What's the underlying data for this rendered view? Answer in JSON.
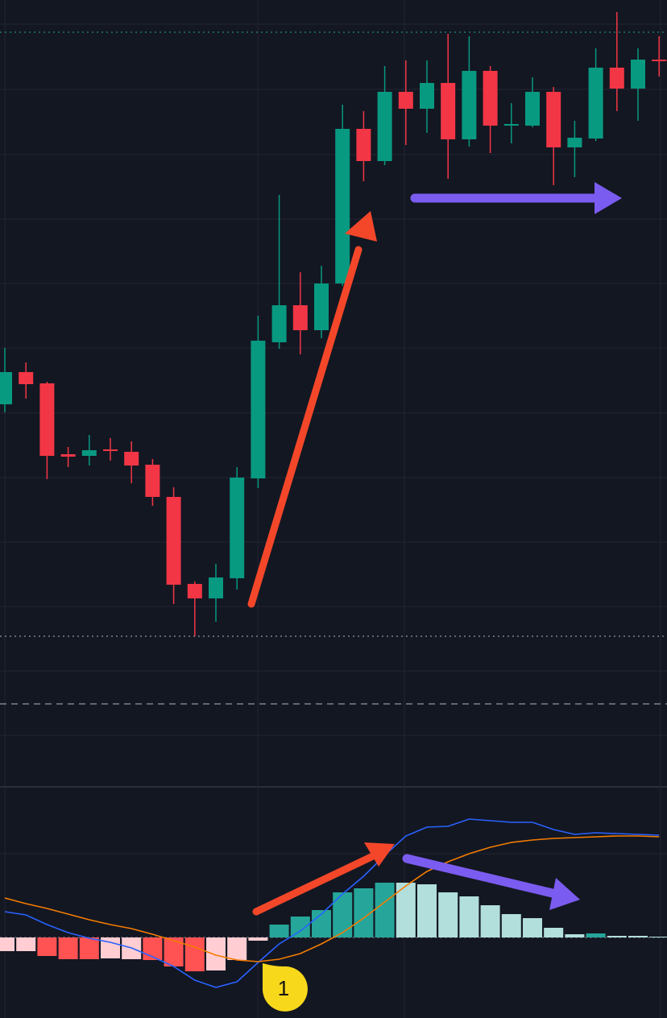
{
  "chart_data": [
    {
      "type": "candlestick",
      "open": [
        298,
        338,
        324,
        236,
        234,
        242,
        239,
        223,
        183,
        75,
        57,
        82,
        206,
        375,
        421,
        390,
        448,
        640,
        600,
        686,
        665,
        697,
        627,
        712,
        644,
        644,
        686,
        617,
        628,
        716,
        690,
        726
      ],
      "close": [
        338,
        323,
        234,
        233,
        241,
        240,
        222,
        183,
        74,
        57,
        83,
        207,
        377,
        421,
        390,
        448,
        640,
        600,
        686,
        665,
        697,
        627,
        712,
        644,
        646,
        686,
        617,
        629,
        716,
        690,
        726,
        724
      ],
      "high": [
        368,
        350,
        326,
        245,
        260,
        256,
        252,
        230,
        195,
        78,
        100,
        220,
        408,
        558,
        462,
        470,
        670,
        662,
        718,
        725,
        725,
        758,
        755,
        718,
        672,
        704,
        692,
        650,
        740,
        785,
        740,
        755
      ],
      "low": [
        288,
        305,
        205,
        220,
        222,
        228,
        200,
        172,
        50,
        10,
        28,
        68,
        194,
        367,
        360,
        380,
        445,
        575,
        595,
        620,
        635,
        578,
        618,
        610,
        622,
        642,
        570,
        580,
        625,
        662,
        650,
        705
      ],
      "up_color": "#089981",
      "down_color": "#f23645",
      "ylim": [
        0,
        800
      ]
    },
    {
      "type": "macd",
      "values": [
        -17,
        -17,
        -23,
        -27,
        -27,
        -26,
        -27,
        -28,
        -36,
        -42,
        -41,
        -28,
        -4,
        16,
        26,
        34,
        56,
        61,
        68,
        68,
        66,
        56,
        51,
        40,
        29,
        24,
        12,
        4,
        5,
        2,
        2,
        1
      ],
      "colors": [
        "#ffcdd2",
        "#ffcdd2",
        "#ff5252",
        "#ff5252",
        "#ff5252",
        "#ffcdd2",
        "#ffcdd2",
        "#ff5252",
        "#ff5252",
        "#ff5252",
        "#ffcdd2",
        "#ffcdd2",
        "#ffcdd2",
        "#26a69a",
        "#26a69a",
        "#26a69a",
        "#26a69a",
        "#26a69a",
        "#26a69a",
        "#b2dfdb",
        "#b2dfdb",
        "#b2dfdb",
        "#b2dfdb",
        "#b2dfdb",
        "#b2dfdb",
        "#b2dfdb",
        "#b2dfdb",
        "#b2dfdb",
        "#26a69a",
        "#b2dfdb",
        "#b2dfdb",
        "#b2dfdb"
      ],
      "series": [
        {
          "color": "#2962ff",
          "values": [
            32,
            28,
            16,
            6,
            -1,
            -6,
            -13,
            -24,
            -36,
            -53,
            -62,
            -55,
            -31,
            -8,
            8,
            29,
            54,
            76,
            102,
            126,
            137,
            138,
            147,
            145,
            143,
            143,
            134,
            128,
            130,
            129,
            128,
            127
          ]
        },
        {
          "color": "#f57c00",
          "values": [
            49,
            42,
            36,
            29,
            22,
            16,
            11,
            4,
            -4,
            -12,
            -22,
            -28,
            -30,
            -27,
            -20,
            -8,
            6,
            24,
            44,
            64,
            82,
            94,
            104,
            112,
            118,
            121,
            123,
            124,
            125,
            126,
            126,
            125
          ]
        }
      ],
      "annotation": "1",
      "ylim": [
        -100,
        189
      ]
    }
  ]
}
